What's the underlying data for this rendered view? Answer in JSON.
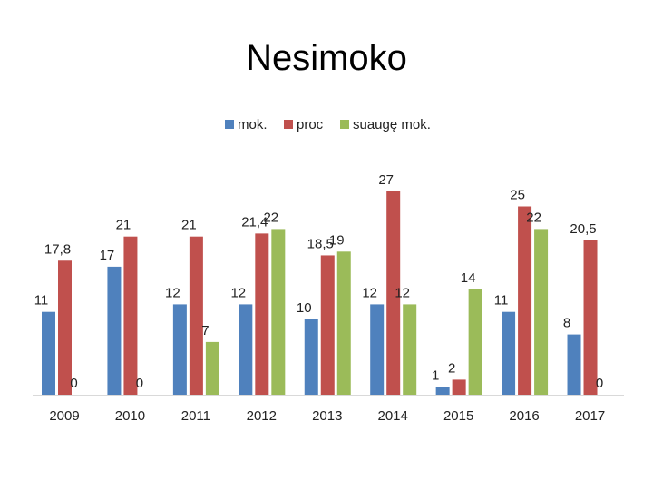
{
  "title": "Nesimoko",
  "chart_data": {
    "type": "bar",
    "title": "Nesimoko",
    "categories": [
      "2009",
      "2010",
      "2011",
      "2012",
      "2013",
      "2014",
      "2015",
      "2016",
      "2017"
    ],
    "series": [
      {
        "name": "mok.",
        "color": "#4f81bd",
        "values": [
          11,
          17,
          12,
          12,
          10,
          12,
          1,
          11,
          8
        ],
        "labels": [
          "11",
          "17",
          "12",
          "12",
          "10",
          "12",
          "1",
          "11",
          "8"
        ]
      },
      {
        "name": "proc",
        "color": "#c0504d",
        "values": [
          17.8,
          21,
          21,
          21.4,
          18.5,
          27,
          2,
          25,
          20.5
        ],
        "labels": [
          "17,8",
          "21",
          "21",
          "21,4",
          "18,5",
          "27",
          "2",
          "25",
          "20,5"
        ]
      },
      {
        "name": "suaugę mok.",
        "color": "#9bbb59",
        "values": [
          0,
          0,
          7,
          22,
          19,
          12,
          14,
          22,
          0
        ],
        "labels": [
          "0",
          "0",
          "7",
          "22",
          "19",
          "12",
          "14",
          "22",
          "0"
        ]
      }
    ],
    "legend_position": "top",
    "grid": false,
    "ylim": [
      0,
      30
    ]
  }
}
